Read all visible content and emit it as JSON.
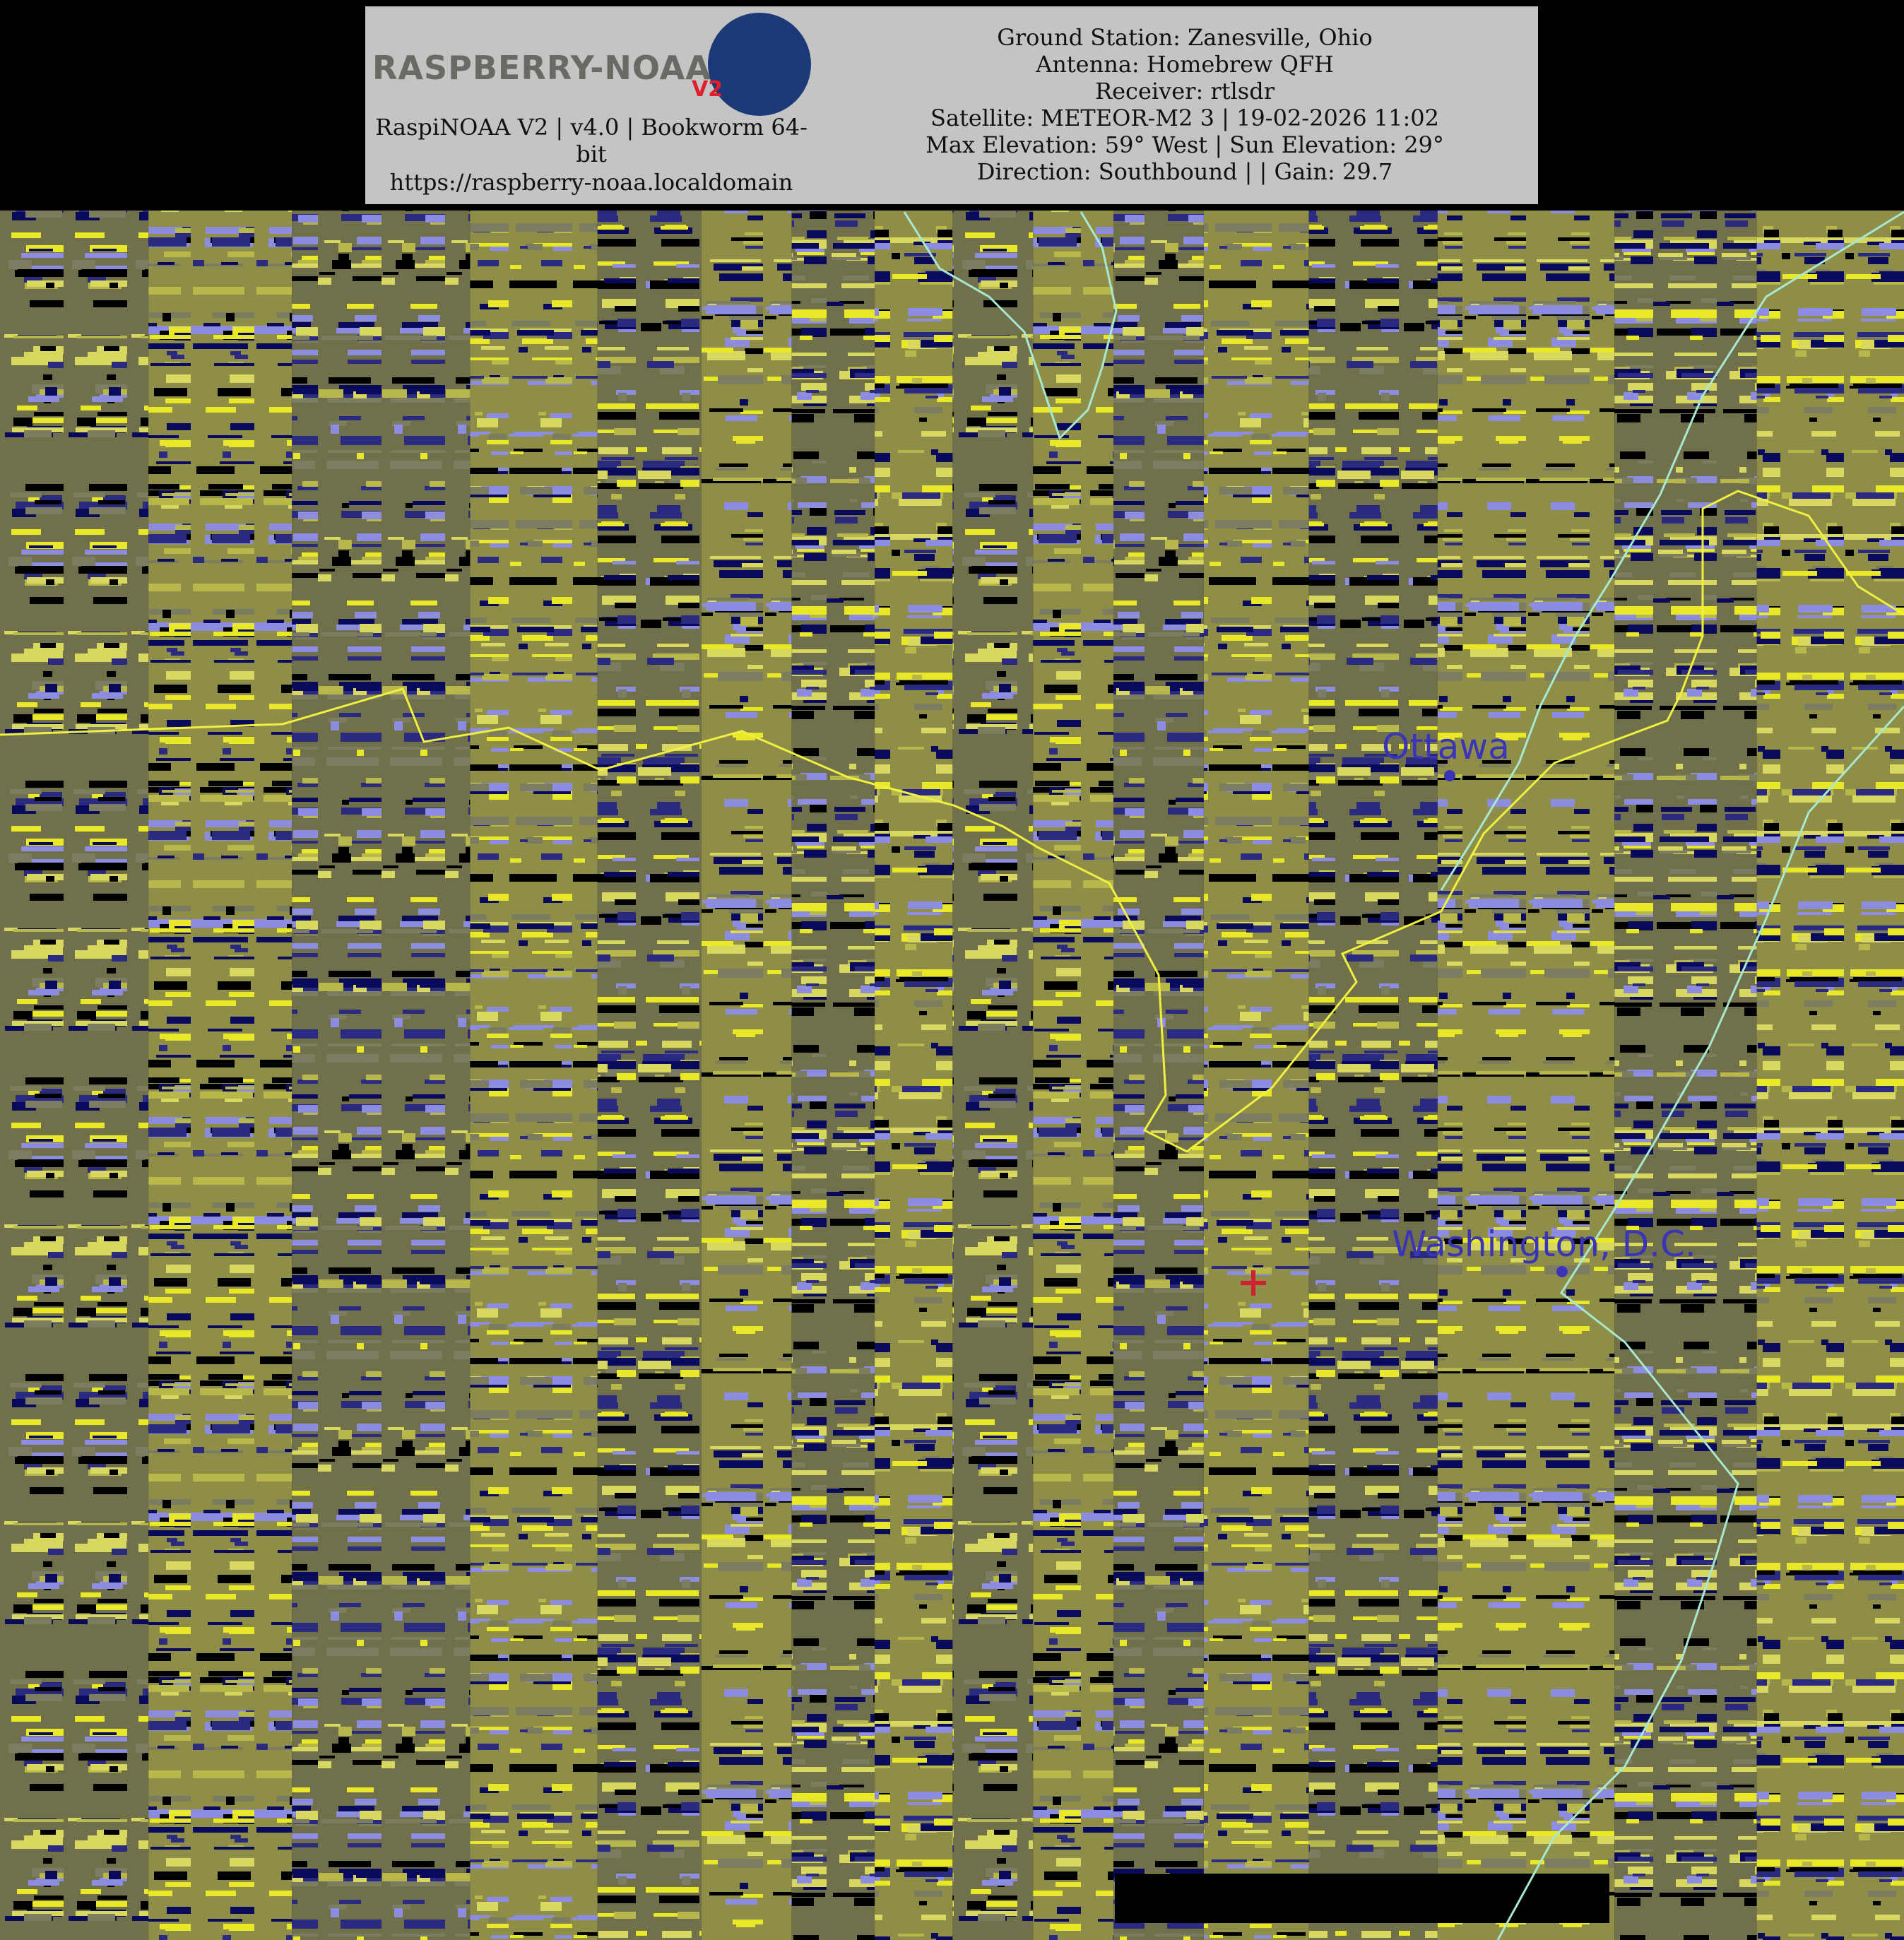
{
  "header": {
    "logo": {
      "title": "RASPBERRY-NOAA",
      "badge": "V2"
    },
    "software": "RaspiNOAA V2 | v4.0 | Bookworm 64-bit",
    "url": "https://raspberry-noaa.localdomain",
    "info": [
      "Ground Station: Zanesville, Ohio",
      "Antenna: Homebrew QFH",
      "Receiver: rtlsdr",
      "Satellite: METEOR-M2 3 | 19-02-2026 11:02",
      "Max Elevation: 59° West | Sun Elevation: 29°",
      "Direction: Southbound | | Gain: 29.7"
    ]
  },
  "map": {
    "labels": [
      "Ottawa",
      "Washington, D.C."
    ]
  }
}
